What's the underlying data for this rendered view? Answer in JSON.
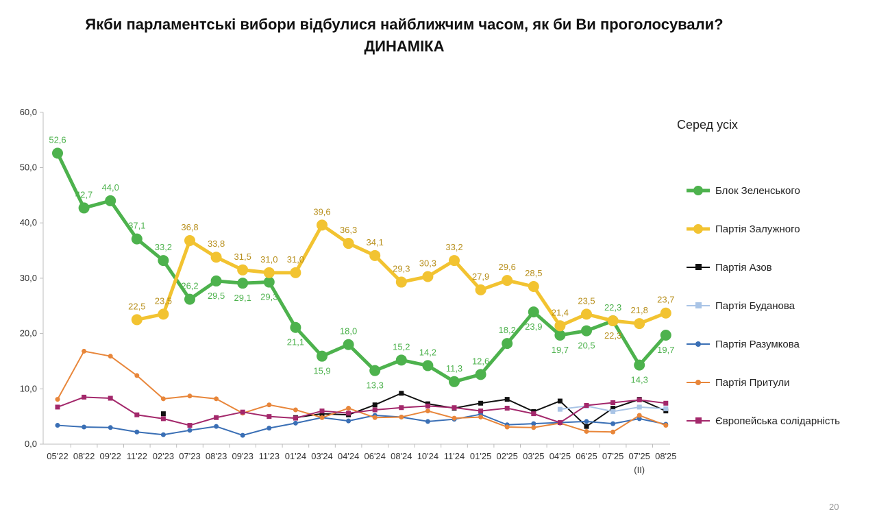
{
  "title": {
    "line1": "Якби парламентські вибори відбулися найближчим часом, як би Ви проголосували?",
    "line2": "ДИНАМІКА"
  },
  "legend_title": "Серед усіх",
  "page_number": "20",
  "chart_data": {
    "type": "line",
    "title": "Якби парламентські вибори відбулися найближчим часом, як би Ви проголосували? ДИНАМІКА",
    "categories": [
      "05'22",
      "08'22",
      "09'22",
      "11'22",
      "02'23",
      "07'23",
      "08'23",
      "09'23",
      "11'23",
      "01'24",
      "03'24",
      "04'24",
      "06'24",
      "08'24",
      "10'24",
      "11'24",
      "01'25",
      "02'25",
      "03'25",
      "04'25",
      "06'25",
      "07'25",
      "07'25",
      "08'25"
    ],
    "category_sublabels": {
      "22": "(II)"
    },
    "ylim": [
      0,
      60
    ],
    "yticks": [
      "0,0",
      "10,0",
      "20,0",
      "30,0",
      "40,0",
      "50,0",
      "60,0"
    ],
    "grid": false,
    "legend_position": "right",
    "series": [
      {
        "name": "Блок Зеленського",
        "color": "#4db24d",
        "marker": "circle",
        "emphasis": true,
        "labels": true,
        "label_color": "#4db24d",
        "values": [
          52.6,
          42.7,
          44.0,
          37.1,
          33.2,
          26.2,
          29.5,
          29.1,
          29.3,
          21.1,
          15.9,
          18.0,
          13.3,
          15.2,
          14.2,
          11.3,
          12.6,
          18.2,
          23.9,
          19.7,
          20.5,
          22.3,
          14.3,
          19.7
        ],
        "value_labels": [
          "52,6",
          "42,7",
          "44,0",
          "37,1",
          "33,2",
          "26,2",
          "29,5",
          "29,1",
          "29,3",
          "21,1",
          "15,9",
          "18,0",
          "13,3",
          "15,2",
          "14,2",
          "11,3",
          "12,6",
          "18,2",
          "23,9",
          "19,7",
          "20,5",
          "22,3",
          "14,3",
          "19,7"
        ],
        "label_pos": [
          "above",
          "above",
          "above",
          "above",
          "above",
          "above",
          "below",
          "below",
          "below",
          "below",
          "below",
          "above",
          "below",
          "above",
          "above",
          "above",
          "above",
          "above",
          "below",
          "below",
          "below",
          "above",
          "below",
          "below"
        ]
      },
      {
        "name": "Партія Залужного",
        "color": "#f2c331",
        "marker": "circle",
        "emphasis": true,
        "labels": true,
        "label_color": "#b8901e",
        "values": [
          null,
          null,
          null,
          22.5,
          23.5,
          36.8,
          33.8,
          31.5,
          31.0,
          31.0,
          39.6,
          36.3,
          34.1,
          29.3,
          30.3,
          33.2,
          27.9,
          29.6,
          28.5,
          21.4,
          23.5,
          22.3,
          21.8,
          23.7
        ],
        "value_labels": [
          null,
          null,
          null,
          "22,5",
          "23,5",
          "36,8",
          "33,8",
          "31,5",
          "31,0",
          "31,0",
          "39,6",
          "36,3",
          "34,1",
          "29,3",
          "30,3",
          "33,2",
          "27,9",
          "29,6",
          "28,5",
          "21,4",
          "23,5",
          "22,3",
          "21,8",
          "23,7"
        ],
        "label_pos": [
          null,
          null,
          null,
          "above",
          "above",
          "above",
          "above",
          "above",
          "above",
          "above",
          "above",
          "above",
          "above",
          "above",
          "above",
          "above",
          "above",
          "above",
          "above",
          "above",
          "above",
          "below",
          "above",
          "above"
        ]
      },
      {
        "name": "Партія Азов",
        "color": "#111111",
        "marker": "square",
        "emphasis": false,
        "labels": false,
        "values": [
          null,
          null,
          null,
          null,
          5.5,
          null,
          null,
          null,
          null,
          4.8,
          5.5,
          5.3,
          7.1,
          9.2,
          7.3,
          6.5,
          7.4,
          8.1,
          5.9,
          7.8,
          3.2,
          6.5,
          8.1,
          6.0
        ]
      },
      {
        "name": "Партія Буданова",
        "color": "#a9c4e6",
        "marker": "square",
        "emphasis": false,
        "labels": false,
        "values": [
          null,
          null,
          null,
          null,
          null,
          null,
          null,
          null,
          null,
          null,
          null,
          null,
          null,
          null,
          null,
          null,
          null,
          null,
          null,
          6.3,
          6.9,
          5.9,
          6.7,
          6.4
        ]
      },
      {
        "name": "Партія Разумкова",
        "color": "#3a6fb5",
        "marker": "circle",
        "emphasis": false,
        "labels": false,
        "values": [
          3.4,
          3.1,
          3.0,
          2.2,
          1.7,
          2.5,
          3.2,
          1.6,
          2.9,
          3.8,
          4.8,
          4.2,
          5.2,
          4.9,
          4.1,
          4.5,
          5.4,
          3.5,
          3.7,
          3.9,
          4.1,
          3.7,
          4.6,
          3.6
        ]
      },
      {
        "name": "Партія Притули",
        "color": "#e8863a",
        "marker": "circle",
        "emphasis": false,
        "labels": false,
        "values": [
          8.1,
          16.8,
          15.9,
          12.4,
          8.2,
          8.7,
          8.2,
          5.6,
          7.1,
          6.2,
          4.8,
          6.5,
          4.8,
          4.9,
          6.0,
          4.7,
          4.9,
          3.1,
          3.0,
          3.8,
          2.3,
          2.2,
          5.2,
          3.4
        ]
      },
      {
        "name": "Європейська солідарність",
        "color": "#a3286b",
        "marker": "square",
        "emphasis": false,
        "labels": false,
        "values": [
          6.7,
          8.5,
          8.3,
          5.3,
          4.6,
          3.4,
          4.8,
          5.8,
          5.0,
          4.7,
          6.0,
          5.6,
          6.2,
          6.6,
          6.9,
          6.6,
          6.0,
          6.5,
          5.5,
          3.9,
          7.0,
          7.5,
          8.0,
          7.4
        ]
      }
    ]
  }
}
